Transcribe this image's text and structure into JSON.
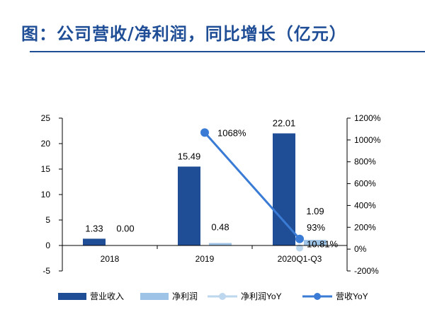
{
  "title": "图：公司营收/净利润，同比增长（亿元）",
  "colors": {
    "title": "#1f4e96",
    "revenue_bar": "#1f4e96",
    "profit_bar": "#9dc3e6",
    "profit_yoy_line": "#bdd7ee",
    "revenue_yoy_line": "#3a7bd5",
    "axis": "#000000"
  },
  "chart_data": {
    "type": "bar",
    "categories": [
      "2018",
      "2019",
      "2020Q1-Q3"
    ],
    "series": [
      {
        "name": "营业收入",
        "type": "bar",
        "axis": "left",
        "values": [
          1.33,
          15.49,
          22.01
        ],
        "labels": [
          "1.33",
          "15.49",
          "22.01"
        ]
      },
      {
        "name": "净利润",
        "type": "bar",
        "axis": "left",
        "values": [
          0.0,
          0.48,
          1.09
        ],
        "labels": [
          "0.00",
          "0.48",
          "1.09"
        ]
      },
      {
        "name": "净利润YoY",
        "type": "line",
        "axis": "right",
        "values": [
          null,
          null,
          10.81
        ],
        "labels": [
          "",
          "",
          "10.81%"
        ]
      },
      {
        "name": "营收YoY",
        "type": "line",
        "axis": "right",
        "values": [
          null,
          1068,
          93
        ],
        "labels": [
          "",
          "1068%",
          "93%"
        ]
      }
    ],
    "y_left": {
      "lim": [
        -5,
        25
      ],
      "ticks": [
        "-5",
        "0",
        "5",
        "10",
        "15",
        "20",
        "25"
      ]
    },
    "y_right": {
      "lim": [
        -200,
        1200
      ],
      "ticks": [
        "-200%",
        "0%",
        "200%",
        "400%",
        "600%",
        "800%",
        "1000%",
        "1200%"
      ]
    },
    "grid": false,
    "legend_position": "bottom"
  }
}
